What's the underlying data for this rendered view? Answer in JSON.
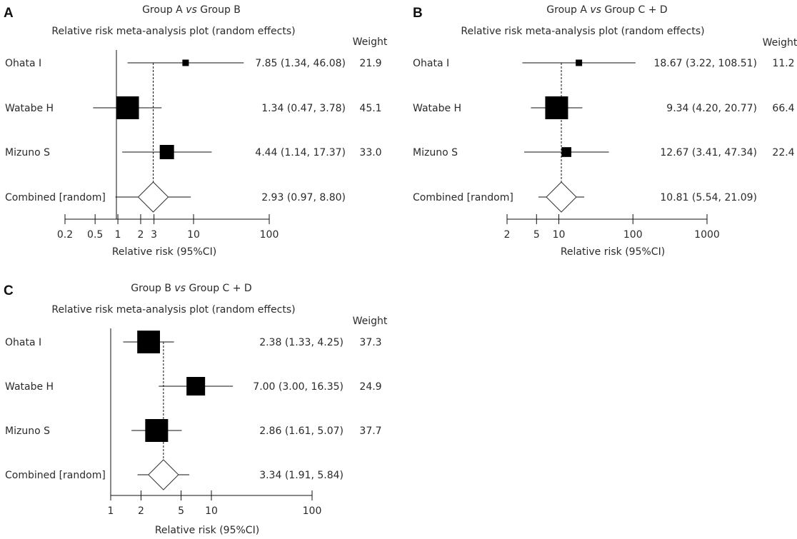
{
  "figure": {
    "weight_label": "Weight",
    "plot_title": "Relative risk meta-analysis plot (random effects)",
    "axis_label": "Relative risk (95%CI)",
    "vs": "vs"
  },
  "chart_data": [
    {
      "panel": "A",
      "type": "forest",
      "scale": "log",
      "title_left": "Group A",
      "title_right": "Group B",
      "subtitle": "Relative risk meta-analysis plot (random effects)",
      "xlabel": "Relative risk (95%CI)",
      "xticks": [
        0.2,
        0.5,
        1,
        2,
        3,
        10,
        100
      ],
      "xticklabels": [
        "0.2",
        "0.5",
        "1",
        "2",
        "3",
        "10",
        "100"
      ],
      "pooled_line": 2.93,
      "studies": [
        {
          "name": "Ohata I",
          "rr": 7.85,
          "lo": 1.34,
          "hi": 46.08,
          "text": "7.85 (1.34, 46.08)",
          "weight": "21.9"
        },
        {
          "name": "Watabe H",
          "rr": 1.34,
          "lo": 0.47,
          "hi": 3.78,
          "text": "1.34 (0.47, 3.78)",
          "weight": "45.1"
        },
        {
          "name": "Mizuno S",
          "rr": 4.44,
          "lo": 1.14,
          "hi": 17.37,
          "text": "4.44 (1.14, 17.37)",
          "weight": "33.0"
        }
      ],
      "combined": {
        "name": "Combined [random]",
        "rr": 2.93,
        "lo": 0.97,
        "hi": 8.8,
        "text": "2.93 (0.97, 8.80)"
      }
    },
    {
      "panel": "B",
      "type": "forest",
      "scale": "log",
      "title_left": "Group A",
      "title_right": "Group C + D",
      "subtitle": "Relative risk meta-analysis plot (random effects)",
      "xlabel": "Relative risk (95%CI)",
      "xticks": [
        2,
        5,
        10,
        100,
        1000
      ],
      "xticklabels": [
        "2",
        "5",
        "10",
        "100",
        "1000"
      ],
      "pooled_line": 10.81,
      "studies": [
        {
          "name": "Ohata I",
          "rr": 18.67,
          "lo": 3.22,
          "hi": 108.51,
          "text": "18.67 (3.22, 108.51)",
          "weight": "11.2"
        },
        {
          "name": "Watabe H",
          "rr": 9.34,
          "lo": 4.2,
          "hi": 20.77,
          "text": "9.34 (4.20, 20.77)",
          "weight": "66.4"
        },
        {
          "name": "Mizuno S",
          "rr": 12.67,
          "lo": 3.41,
          "hi": 47.34,
          "text": "12.67 (3.41, 47.34)",
          "weight": "22.4"
        }
      ],
      "combined": {
        "name": "Combined [random]",
        "rr": 10.81,
        "lo": 5.54,
        "hi": 21.09,
        "text": "10.81 (5.54, 21.09)"
      }
    },
    {
      "panel": "C",
      "type": "forest",
      "scale": "log",
      "title_left": "Group B",
      "title_right": "Group C + D",
      "subtitle": "Relative risk meta-analysis plot (random effects)",
      "xlabel": "Relative risk (95%CI)",
      "xticks": [
        1,
        2,
        5,
        10,
        100
      ],
      "xticklabels": [
        "1",
        "2",
        "5",
        "10",
        "100"
      ],
      "pooled_line": 3.34,
      "studies": [
        {
          "name": "Ohata I",
          "rr": 2.38,
          "lo": 1.33,
          "hi": 4.25,
          "text": "2.38 (1.33, 4.25)",
          "weight": "37.3"
        },
        {
          "name": "Watabe H",
          "rr": 7.0,
          "lo": 3.0,
          "hi": 16.35,
          "text": "7.00 (3.00, 16.35)",
          "weight": "24.9"
        },
        {
          "name": "Mizuno S",
          "rr": 2.86,
          "lo": 1.61,
          "hi": 5.07,
          "text": "2.86 (1.61, 5.07)",
          "weight": "37.7"
        }
      ],
      "combined": {
        "name": "Combined [random]",
        "rr": 3.34,
        "lo": 1.91,
        "hi": 5.84,
        "text": "3.34 (1.91, 5.84)"
      }
    }
  ]
}
